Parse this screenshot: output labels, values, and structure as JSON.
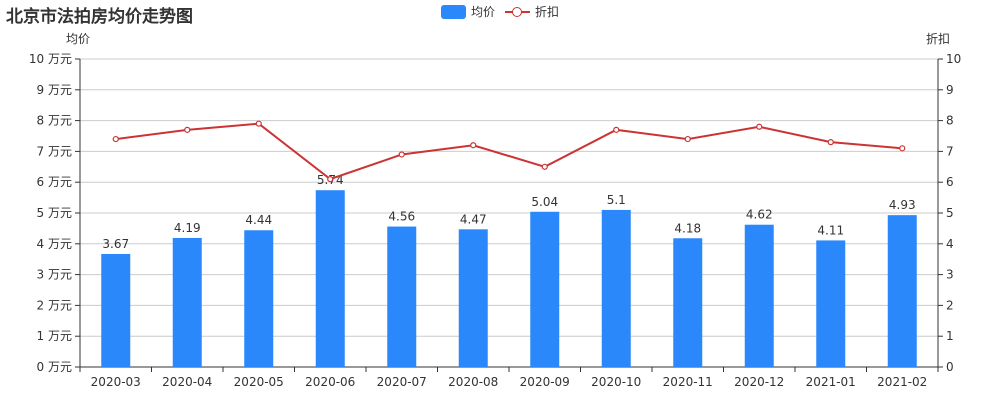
{
  "title": "北京市法拍房均价走势图",
  "legend": {
    "bar_label": "均价",
    "line_label": "折扣"
  },
  "axes": {
    "left_name": "均价",
    "right_name": "折扣",
    "left_unit": " 万元"
  },
  "colors": {
    "bar": "#2b88fb",
    "line": "#cc3333",
    "grid": "#cccccc",
    "axis": "#333333"
  },
  "chart_data": {
    "type": "bar+line",
    "title": "北京市法拍房均价走势图",
    "categories": [
      "2020-03",
      "2020-04",
      "2020-05",
      "2020-06",
      "2020-07",
      "2020-08",
      "2020-09",
      "2020-10",
      "2020-11",
      "2020-12",
      "2021-01",
      "2021-02"
    ],
    "series": [
      {
        "name": "均价",
        "type": "bar",
        "axis": "left",
        "unit": "万元",
        "values": [
          3.67,
          4.19,
          4.44,
          5.74,
          4.56,
          4.47,
          5.04,
          5.1,
          4.18,
          4.62,
          4.11,
          4.93
        ]
      },
      {
        "name": "折扣",
        "type": "line",
        "axis": "right",
        "values": [
          7.4,
          7.7,
          7.9,
          6.1,
          6.9,
          7.2,
          6.5,
          7.7,
          7.4,
          7.8,
          7.3,
          7.1
        ]
      }
    ],
    "ylabel_left": "均价",
    "ylabel_right": "折扣",
    "ylim_left": [
      0,
      10
    ],
    "ylim_right": [
      0,
      10
    ],
    "yticks_left": [
      "0 万元",
      "1 万元",
      "2 万元",
      "3 万元",
      "4 万元",
      "5 万元",
      "6 万元",
      "7 万元",
      "8 万元",
      "9 万元",
      "10 万元"
    ],
    "yticks_right": [
      "0",
      "1",
      "2",
      "3",
      "4",
      "5",
      "6",
      "7",
      "8",
      "9",
      "10"
    ],
    "grid": true,
    "legend_position": "top-center"
  }
}
